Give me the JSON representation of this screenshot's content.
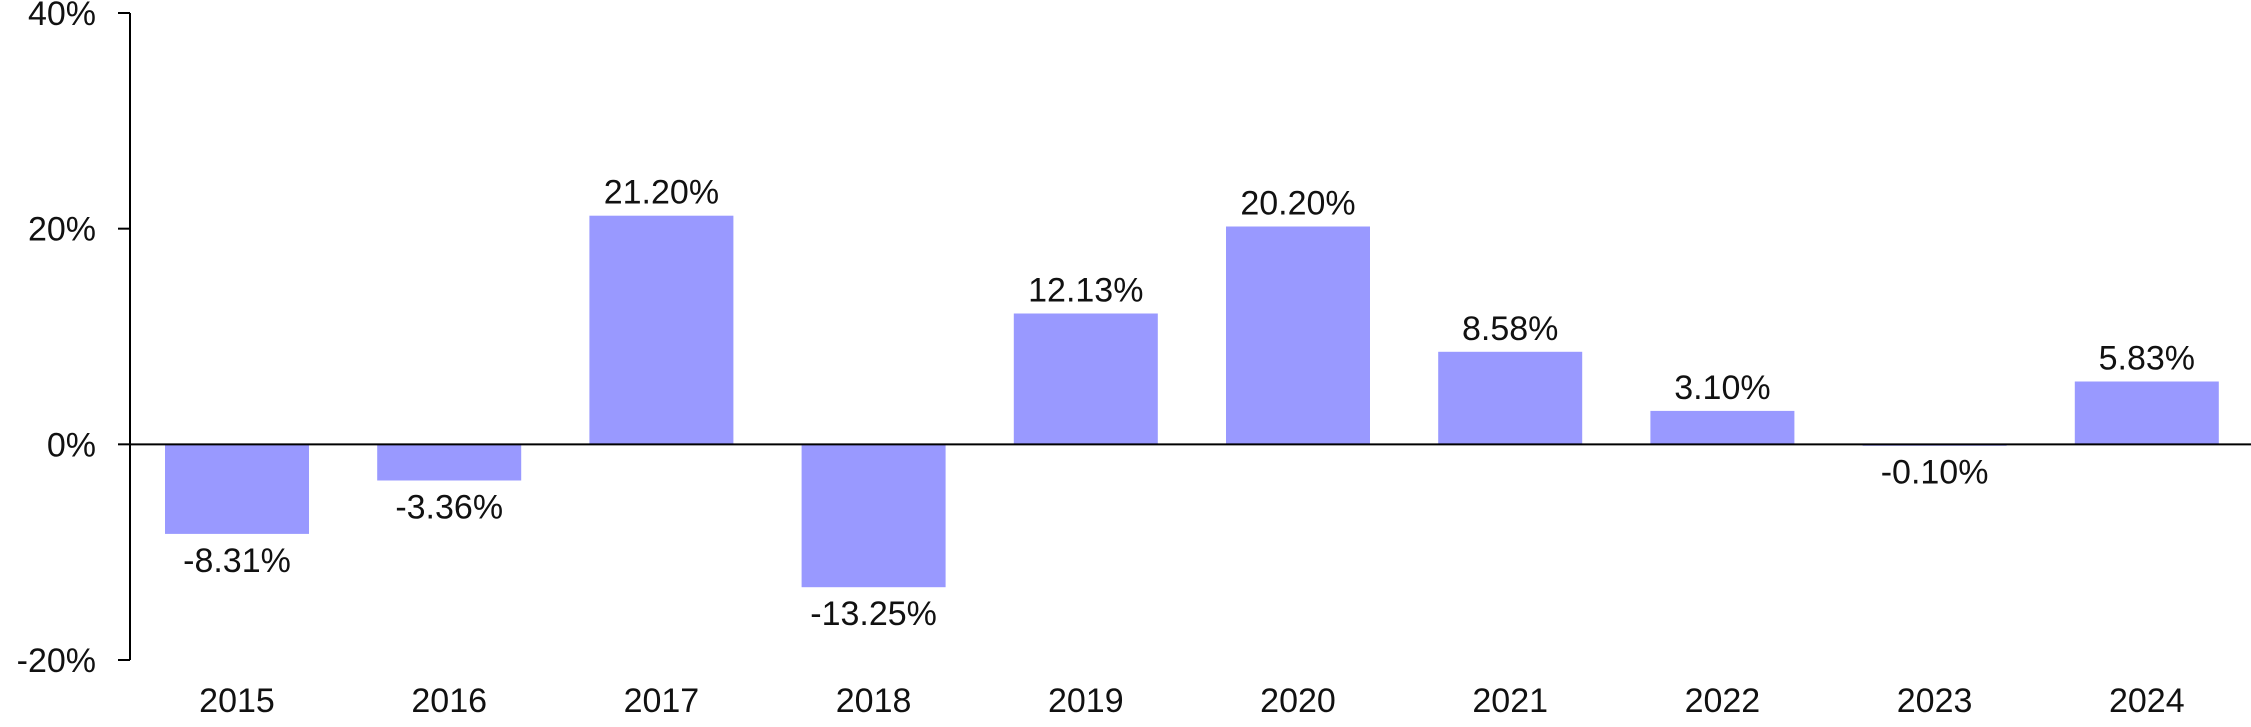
{
  "chart_data": {
    "type": "bar",
    "categories": [
      "2015",
      "2016",
      "2017",
      "2018",
      "2019",
      "2020",
      "2021",
      "2022",
      "2023",
      "2024"
    ],
    "values": [
      -8.31,
      -3.36,
      21.2,
      -13.25,
      12.13,
      20.2,
      8.58,
      3.1,
      -0.1,
      5.83
    ],
    "data_labels": [
      "-8.31%",
      "-3.36%",
      "21.20%",
      "-13.25%",
      "12.13%",
      "20.20%",
      "8.58%",
      "3.10%",
      "-0.10%",
      "5.83%"
    ],
    "ylim": [
      -20,
      40
    ],
    "yticks": [
      -20,
      0,
      20,
      40
    ],
    "ytick_labels": [
      "-20%",
      "0%",
      "20%",
      "40%"
    ],
    "grid": false,
    "legend": "none",
    "colors": {
      "bar": "#9999ff",
      "axis": "#000000"
    }
  }
}
